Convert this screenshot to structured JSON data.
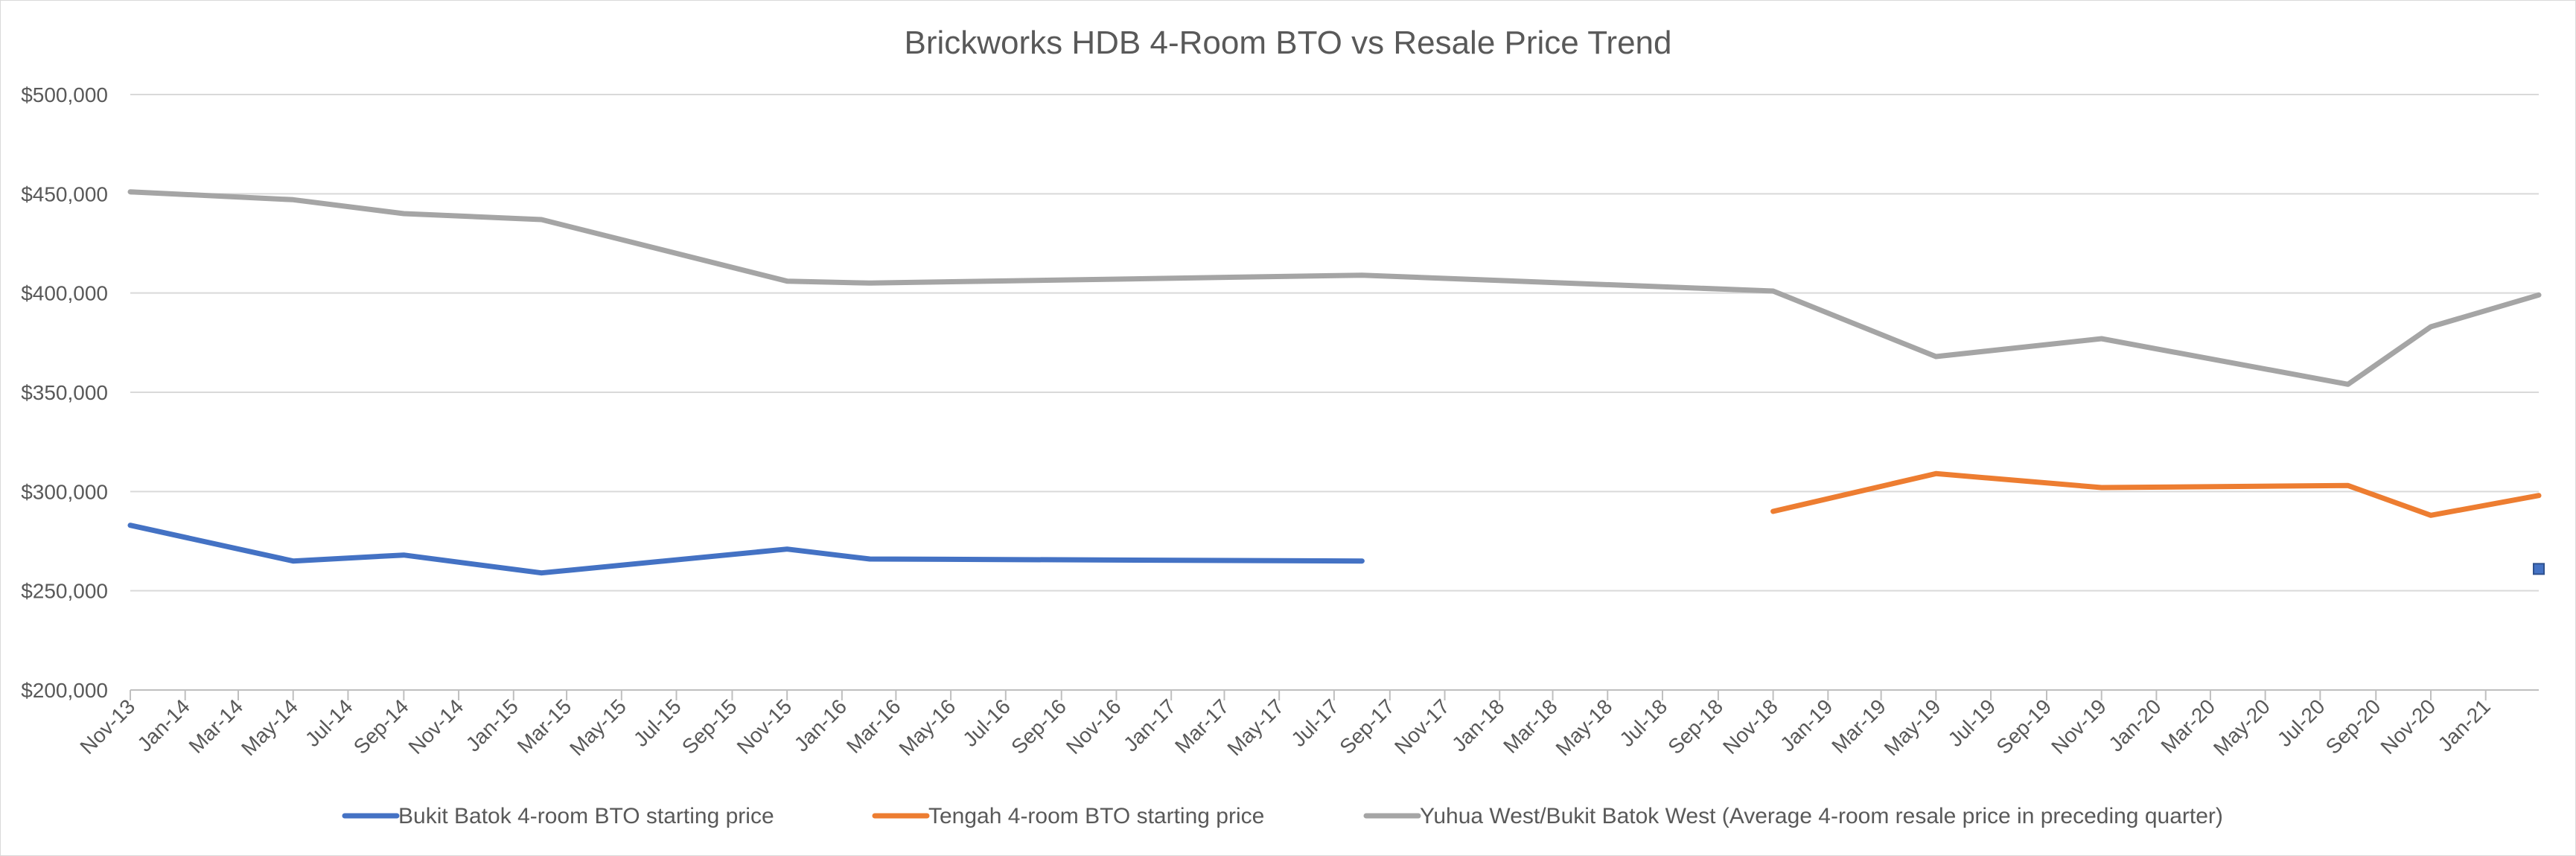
{
  "chart_data": {
    "type": "line",
    "title": "Brickworks HDB 4-Room BTO vs Resale Price Trend",
    "xlabel": "",
    "ylabel": "",
    "ylim": [
      200000,
      500000
    ],
    "yticks": [
      {
        "value": 500000,
        "label": "$500,000"
      },
      {
        "value": 450000,
        "label": "$450,000"
      },
      {
        "value": 400000,
        "label": "$400,000"
      },
      {
        "value": 350000,
        "label": "$350,000"
      },
      {
        "value": 300000,
        "label": "$300,000"
      },
      {
        "value": 250000,
        "label": "$250,000"
      },
      {
        "value": 200000,
        "label": "$200,000"
      }
    ],
    "x_range": [
      "2013-11-01",
      "2021-03-01"
    ],
    "xticks": [
      "Nov-13",
      "Jan-14",
      "Mar-14",
      "May-14",
      "Jul-14",
      "Sep-14",
      "Nov-14",
      "Jan-15",
      "Mar-15",
      "May-15",
      "Jul-15",
      "Sep-15",
      "Nov-15",
      "Jan-16",
      "Mar-16",
      "May-16",
      "Jul-16",
      "Sep-16",
      "Nov-16",
      "Jan-17",
      "Mar-17",
      "May-17",
      "Jul-17",
      "Sep-17",
      "Nov-17",
      "Jan-18",
      "Mar-18",
      "May-18",
      "Jul-18",
      "Sep-18",
      "Nov-18",
      "Jan-19",
      "Mar-19",
      "May-19",
      "Jul-19",
      "Sep-19",
      "Nov-19",
      "Jan-20",
      "Mar-20",
      "May-20",
      "Jul-20",
      "Sep-20",
      "Nov-20",
      "Jan-21"
    ],
    "grid": true,
    "legend_position": "bottom",
    "series": [
      {
        "name": "Bukit Batok 4-room BTO starting price",
        "color": "#4472c4",
        "points": [
          {
            "x": "2013-11-01",
            "y": 283000
          },
          {
            "x": "2014-05-01",
            "y": 265000
          },
          {
            "x": "2014-09-01",
            "y": 268000
          },
          {
            "x": "2015-02-01",
            "y": 259000
          },
          {
            "x": "2015-11-01",
            "y": 271000
          },
          {
            "x": "2016-02-01",
            "y": 266000
          },
          {
            "x": "2017-08-01",
            "y": 265000
          }
        ]
      },
      {
        "name": "Tengah 4-room BTO starting price",
        "color": "#ed7d31",
        "points": [
          {
            "x": "2018-11-01",
            "y": 290000
          },
          {
            "x": "2019-05-01",
            "y": 309000
          },
          {
            "x": "2019-11-01",
            "y": 302000
          },
          {
            "x": "2020-08-01",
            "y": 303000
          },
          {
            "x": "2020-11-01",
            "y": 288000
          },
          {
            "x": "2021-03-01",
            "y": 298000
          }
        ]
      },
      {
        "name": "Yuhua West/Bukit Batok West (Average 4-room resale price in preceding quarter)",
        "color": "#a5a5a5",
        "points": [
          {
            "x": "2013-11-01",
            "y": 451000
          },
          {
            "x": "2014-05-01",
            "y": 447000
          },
          {
            "x": "2014-09-01",
            "y": 440000
          },
          {
            "x": "2015-02-01",
            "y": 437000
          },
          {
            "x": "2015-11-01",
            "y": 406000
          },
          {
            "x": "2016-02-01",
            "y": 405000
          },
          {
            "x": "2017-08-01",
            "y": 409000
          },
          {
            "x": "2018-11-01",
            "y": 401000
          },
          {
            "x": "2019-05-01",
            "y": 368000
          },
          {
            "x": "2019-11-01",
            "y": 377000
          },
          {
            "x": "2020-08-01",
            "y": 354000
          },
          {
            "x": "2020-11-01",
            "y": 383000
          },
          {
            "x": "2021-03-01",
            "y": 399000
          }
        ]
      }
    ],
    "extra_markers": [
      {
        "x": "2021-03-01",
        "y": 261000,
        "color": "#4472c4"
      }
    ]
  }
}
